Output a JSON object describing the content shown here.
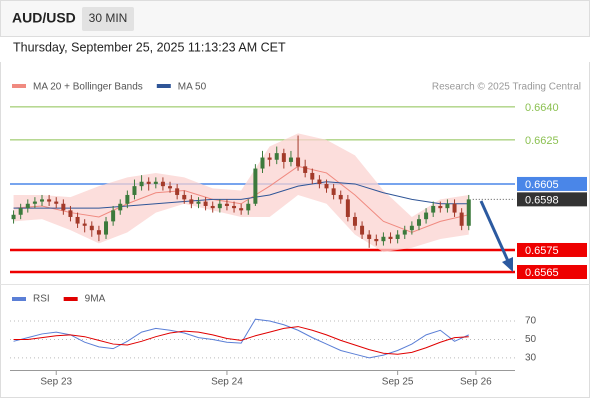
{
  "header": {
    "symbol": "AUD/USD",
    "timeframe": "30 MIN",
    "timestamp": "Thursday, September 25, 2025 11:13:23 AM CET"
  },
  "chart_data": [
    {
      "type": "candlestick",
      "up_color": "#3c7a3c",
      "down_color": "#a33a2a",
      "ohlc": [
        [
          0.6589,
          0.6593,
          0.6587,
          0.6591
        ],
        [
          0.6591,
          0.6596,
          0.6589,
          0.6594
        ],
        [
          0.6594,
          0.6598,
          0.6592,
          0.6596
        ],
        [
          0.6596,
          0.6599,
          0.6594,
          0.6597
        ],
        [
          0.6597,
          0.66,
          0.6595,
          0.6598
        ],
        [
          0.6598,
          0.66,
          0.6595,
          0.6597
        ],
        [
          0.6597,
          0.6599,
          0.6594,
          0.6596
        ],
        [
          0.6596,
          0.6598,
          0.6591,
          0.6593
        ],
        [
          0.6593,
          0.6595,
          0.6588,
          0.659
        ],
        [
          0.659,
          0.6592,
          0.6585,
          0.6587
        ],
        [
          0.6587,
          0.6589,
          0.6583,
          0.6586
        ],
        [
          0.6586,
          0.6588,
          0.6581,
          0.6584
        ],
        [
          0.6584,
          0.6586,
          0.6579,
          0.6582
        ],
        [
          0.6582,
          0.659,
          0.658,
          0.6588
        ],
        [
          0.6588,
          0.6595,
          0.6586,
          0.6593
        ],
        [
          0.6593,
          0.6598,
          0.6591,
          0.6596
        ],
        [
          0.6596,
          0.6602,
          0.6594,
          0.66
        ],
        [
          0.66,
          0.6607,
          0.6598,
          0.6604
        ],
        [
          0.6604,
          0.6609,
          0.6602,
          0.6606
        ],
        [
          0.6606,
          0.6608,
          0.6602,
          0.6605
        ],
        [
          0.6605,
          0.6608,
          0.6603,
          0.6606
        ],
        [
          0.6606,
          0.6608,
          0.6602,
          0.6604
        ],
        [
          0.6604,
          0.6606,
          0.6601,
          0.6603
        ],
        [
          0.6603,
          0.6605,
          0.6598,
          0.66
        ],
        [
          0.66,
          0.6602,
          0.6596,
          0.6598
        ],
        [
          0.6598,
          0.66,
          0.6594,
          0.6596
        ],
        [
          0.6596,
          0.6599,
          0.6594,
          0.6597
        ],
        [
          0.6597,
          0.6599,
          0.6593,
          0.6595
        ],
        [
          0.6595,
          0.6597,
          0.6592,
          0.6594
        ],
        [
          0.6594,
          0.6598,
          0.6592,
          0.6596
        ],
        [
          0.6596,
          0.6598,
          0.6593,
          0.6595
        ],
        [
          0.6595,
          0.6597,
          0.6592,
          0.6594
        ],
        [
          0.6594,
          0.6596,
          0.6591,
          0.6593
        ],
        [
          0.6593,
          0.6598,
          0.6591,
          0.6596
        ],
        [
          0.6596,
          0.6614,
          0.6595,
          0.6612
        ],
        [
          0.6612,
          0.662,
          0.661,
          0.6617
        ],
        [
          0.6617,
          0.6619,
          0.6613,
          0.6616
        ],
        [
          0.6616,
          0.6622,
          0.6614,
          0.6619
        ],
        [
          0.6619,
          0.6621,
          0.6612,
          0.6615
        ],
        [
          0.6615,
          0.662,
          0.6613,
          0.6617
        ],
        [
          0.6617,
          0.6627,
          0.6611,
          0.6613
        ],
        [
          0.6613,
          0.6616,
          0.6608,
          0.661
        ],
        [
          0.661,
          0.6612,
          0.6605,
          0.6607
        ],
        [
          0.6607,
          0.6609,
          0.6603,
          0.6605
        ],
        [
          0.6605,
          0.6607,
          0.6601,
          0.6603
        ],
        [
          0.6603,
          0.6605,
          0.6598,
          0.66
        ],
        [
          0.66,
          0.6602,
          0.6596,
          0.6598
        ],
        [
          0.6598,
          0.66,
          0.6588,
          0.659
        ],
        [
          0.659,
          0.6592,
          0.6584,
          0.6586
        ],
        [
          0.6586,
          0.6588,
          0.658,
          0.6582
        ],
        [
          0.6582,
          0.6584,
          0.6576,
          0.658
        ],
        [
          0.658,
          0.6582,
          0.6577,
          0.6579
        ],
        [
          0.6579,
          0.6583,
          0.6577,
          0.6581
        ],
        [
          0.6581,
          0.6583,
          0.6578,
          0.658
        ],
        [
          0.658,
          0.6584,
          0.6578,
          0.6582
        ],
        [
          0.6582,
          0.6586,
          0.658,
          0.6584
        ],
        [
          0.6584,
          0.6588,
          0.6582,
          0.6586
        ],
        [
          0.6586,
          0.6591,
          0.6584,
          0.6589
        ],
        [
          0.6589,
          0.6594,
          0.6587,
          0.6592
        ],
        [
          0.6592,
          0.6597,
          0.659,
          0.6595
        ],
        [
          0.6595,
          0.6597,
          0.6592,
          0.6594
        ],
        [
          0.6594,
          0.6598,
          0.6592,
          0.6596
        ],
        [
          0.6596,
          0.6598,
          0.659,
          0.6592
        ],
        [
          0.6592,
          0.6594,
          0.6584,
          0.6586
        ],
        [
          0.6586,
          0.66,
          0.6584,
          0.6598
        ]
      ],
      "xlim": [
        -0.5,
        70.5
      ],
      "ylim": [
        0.656,
        0.66545
      ],
      "series": [
        {
          "name": "MA 20 + Bollinger Bands",
          "color": "#f08a80",
          "band_color": "#fbd3d0",
          "x": [
            0,
            4,
            8,
            12,
            16,
            20,
            24,
            28,
            32,
            36,
            40,
            44,
            48,
            52,
            56,
            60,
            64
          ],
          "values": [
            0.6594,
            0.6595,
            0.6592,
            0.659,
            0.6596,
            0.6601,
            0.6602,
            0.6598,
            0.6596,
            0.6604,
            0.6613,
            0.661,
            0.66,
            0.6588,
            0.6583,
            0.6588,
            0.6591
          ],
          "upper": [
            0.66,
            0.66,
            0.6599,
            0.6604,
            0.6608,
            0.661,
            0.6608,
            0.6603,
            0.6602,
            0.6622,
            0.6628,
            0.6625,
            0.6618,
            0.6602,
            0.659,
            0.6598,
            0.66
          ],
          "lower": [
            0.6588,
            0.6589,
            0.6584,
            0.6578,
            0.6583,
            0.6592,
            0.6596,
            0.6593,
            0.659,
            0.659,
            0.66,
            0.6596,
            0.6582,
            0.6574,
            0.6576,
            0.658,
            0.6582
          ]
        },
        {
          "name": "MA 50",
          "color": "#2f5597",
          "x": [
            0,
            4,
            8,
            12,
            16,
            20,
            24,
            28,
            32,
            36,
            40,
            44,
            48,
            52,
            56,
            60,
            64
          ],
          "values": [
            0.6594,
            0.6594,
            0.6594,
            0.6594,
            0.6595,
            0.6596,
            0.6597,
            0.6598,
            0.6598,
            0.66,
            0.6604,
            0.6606,
            0.6605,
            0.6601,
            0.6598,
            0.6596,
            0.6596
          ]
        }
      ],
      "levels": [
        {
          "value": 0.664,
          "label": "0.6640",
          "color": "#8cc152",
          "boxed": false
        },
        {
          "value": 0.6625,
          "label": "0.6625",
          "color": "#8cc152",
          "boxed": false
        },
        {
          "value": 0.6605,
          "label": "0.6605",
          "color": "#4a86e8",
          "boxed": true
        },
        {
          "value": 0.6575,
          "label": "0.6575",
          "color": "#ee0000",
          "boxed": true
        },
        {
          "value": 0.6565,
          "label": "0.6565",
          "color": "#ee0000",
          "boxed": true
        }
      ],
      "current": {
        "value": 0.6598,
        "label": "0.6598",
        "color": "#333333"
      },
      "attribution": "Research © 2025 Trading Central"
    },
    {
      "type": "line",
      "x": [
        0,
        2,
        4,
        6,
        8,
        10,
        12,
        14,
        16,
        18,
        20,
        22,
        24,
        26,
        28,
        30,
        32,
        34,
        36,
        38,
        40,
        42,
        44,
        46,
        48,
        50,
        52,
        54,
        56,
        58,
        60,
        62,
        64
      ],
      "series": [
        {
          "name": "RSI",
          "color": "#5b7fd6",
          "values": [
            48,
            52,
            56,
            58,
            55,
            47,
            42,
            40,
            48,
            58,
            62,
            60,
            57,
            52,
            50,
            47,
            46,
            72,
            70,
            66,
            60,
            52,
            45,
            38,
            34,
            30,
            33,
            38,
            45,
            55,
            60,
            48,
            55
          ]
        },
        {
          "name": "9MA",
          "color": "#e00000",
          "values": [
            50,
            50,
            52,
            54,
            55,
            53,
            49,
            45,
            44,
            48,
            53,
            57,
            59,
            58,
            55,
            51,
            49,
            54,
            58,
            62,
            64,
            60,
            55,
            49,
            44,
            39,
            35,
            34,
            36,
            41,
            47,
            52,
            53
          ]
        }
      ],
      "xlim": [
        -0.5,
        70.5
      ],
      "ylim": [
        19,
        82
      ],
      "yticks": [
        30,
        50,
        70
      ],
      "xticks": [
        {
          "value": 6,
          "label": "Sep 23"
        },
        {
          "value": 30,
          "label": "Sep 24"
        },
        {
          "value": 54,
          "label": "Sep 25"
        },
        {
          "value": 65,
          "label": "Sep 26"
        }
      ]
    }
  ]
}
